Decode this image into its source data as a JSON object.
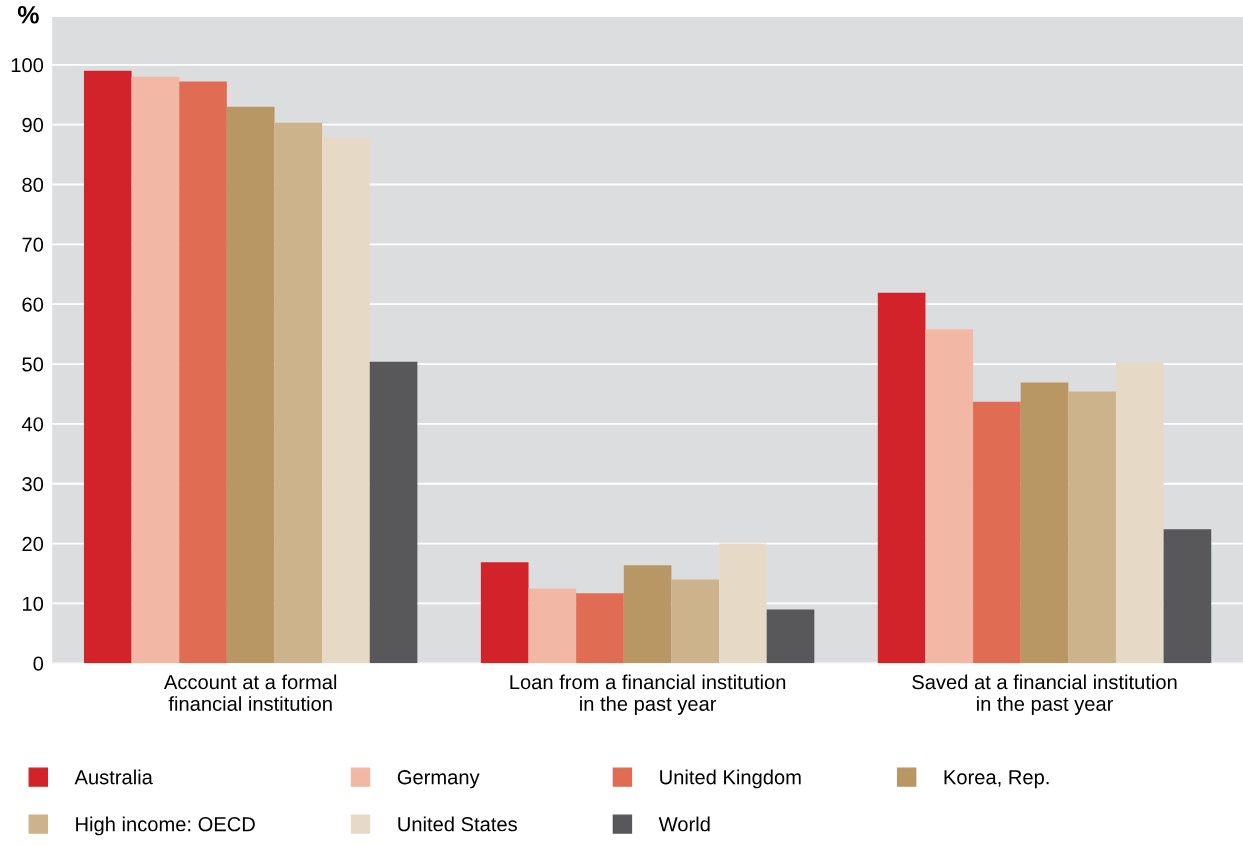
{
  "chart_data": {
    "type": "bar",
    "ylabel": "%",
    "categories": [
      "Account at a formal\nfinancial institution",
      "Loan from a financial institution\nin the past year",
      "Saved at a financial institution\nin the past year"
    ],
    "series": [
      {
        "name": "Australia",
        "color": "#d2232a",
        "values": [
          99,
          16.9,
          61.9
        ]
      },
      {
        "name": "Germany",
        "color": "#f2b8a5",
        "values": [
          98,
          12.5,
          55.8
        ]
      },
      {
        "name": "United Kingdom",
        "color": "#e06c53",
        "values": [
          97.2,
          11.7,
          43.7
        ]
      },
      {
        "name": "Korea, Rep.",
        "color": "#b89764",
        "values": [
          93,
          16.4,
          46.9
        ]
      },
      {
        "name": "High income: OECD",
        "color": "#ccb38b",
        "values": [
          90.3,
          14,
          45.4
        ]
      },
      {
        "name": "United States",
        "color": "#e6dac7",
        "values": [
          87.8,
          20,
          50.3
        ]
      },
      {
        "name": "World",
        "color": "#58585a",
        "values": [
          50.4,
          9,
          22.4
        ]
      }
    ],
    "ylim": [
      0,
      108
    ],
    "yticks": [
      0,
      10,
      20,
      30,
      40,
      50,
      60,
      70,
      80,
      90,
      100
    ],
    "grid": "y",
    "legend": "bottom"
  }
}
